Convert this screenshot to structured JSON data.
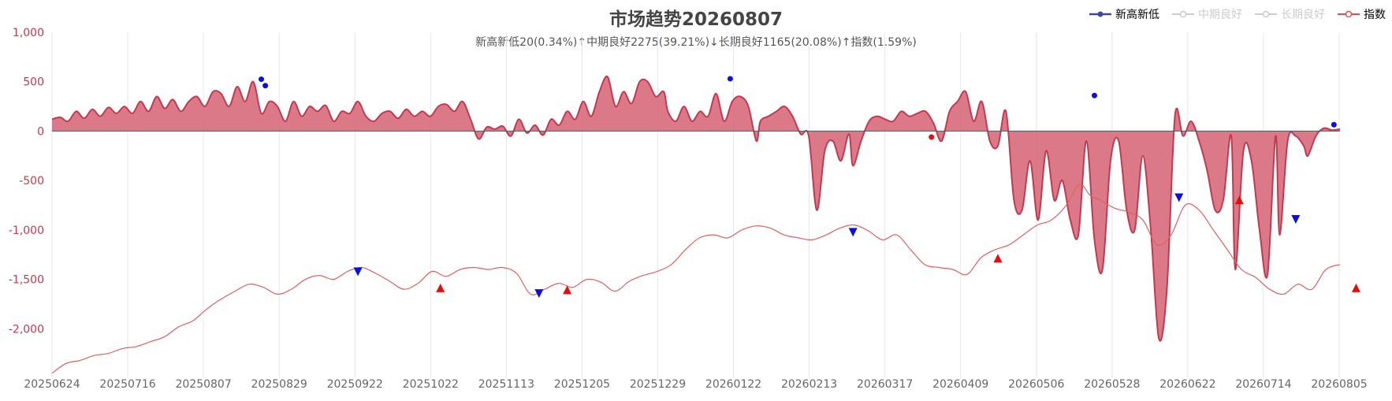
{
  "title": "市场趋势20260807",
  "subtitle": "新高新低20(0.34%)↑中期良好2275(39.21%)↓长期良好1165(20.08%)↑指数(1.59%)",
  "legend": [
    {
      "name": "新高新低",
      "active": true,
      "color": "#c23a4f"
    },
    {
      "name": "中期良好",
      "active": false,
      "color": "#cccccc"
    },
    {
      "name": "长期良好",
      "active": false,
      "color": "#cccccc"
    },
    {
      "name": "指数",
      "active": true,
      "color": "#e65a5a"
    }
  ],
  "chart_data": {
    "type": "area",
    "y_axis": {
      "min": -2500,
      "max": 1000,
      "ticks": [
        "1,000",
        "500",
        "0",
        "-500",
        "-1,000",
        "-1,500",
        "-2,000"
      ],
      "tick_values": [
        1000,
        500,
        0,
        -500,
        -1000,
        -1500,
        -2000
      ]
    },
    "x_ticks": [
      "20250624",
      "20250716",
      "20250807",
      "20250829",
      "20250922",
      "20251022",
      "20251113",
      "20251205",
      "20251229",
      "20260122",
      "20260213",
      "20260317",
      "20260409",
      "20260506",
      "20260528",
      "20260622",
      "20260714",
      "20260805"
    ],
    "x_count": 272,
    "grid": "vertical",
    "colors": {
      "area": "#c23a4f",
      "area_fill": "#d56274",
      "index_line": "#e06060",
      "marker_up": "#e01010",
      "marker_down": "#0a10e0",
      "axis_text": "#c23a4f",
      "grid": "#e4e6f0"
    },
    "series": [
      {
        "name": "新高新低",
        "knots": [
          [
            0,
            120
          ],
          [
            4,
            140
          ],
          [
            8,
            100
          ],
          [
            12,
            200
          ],
          [
            16,
            130
          ],
          [
            20,
            220
          ],
          [
            24,
            150
          ],
          [
            28,
            240
          ],
          [
            32,
            180
          ],
          [
            36,
            250
          ],
          [
            40,
            180
          ],
          [
            44,
            300
          ],
          [
            48,
            200
          ],
          [
            52,
            350
          ],
          [
            56,
            230
          ],
          [
            60,
            320
          ],
          [
            64,
            200
          ],
          [
            68,
            300
          ],
          [
            72,
            350
          ],
          [
            76,
            250
          ],
          [
            80,
            400
          ],
          [
            84,
            380
          ],
          [
            88,
            250
          ],
          [
            92,
            450
          ],
          [
            96,
            300
          ],
          [
            100,
            500
          ],
          [
            104,
            180
          ],
          [
            108,
            300
          ],
          [
            112,
            250
          ],
          [
            116,
            100
          ],
          [
            120,
            300
          ],
          [
            124,
            150
          ],
          [
            128,
            250
          ],
          [
            132,
            200
          ],
          [
            136,
            260
          ],
          [
            140,
            100
          ],
          [
            144,
            200
          ],
          [
            148,
            180
          ],
          [
            152,
            300
          ],
          [
            156,
            150
          ],
          [
            160,
            100
          ],
          [
            164,
            180
          ],
          [
            168,
            200
          ],
          [
            172,
            130
          ],
          [
            176,
            220
          ],
          [
            180,
            150
          ],
          [
            184,
            200
          ],
          [
            188,
            150
          ],
          [
            192,
            250
          ],
          [
            196,
            270
          ],
          [
            200,
            200
          ],
          [
            204,
            300
          ],
          [
            208,
            120
          ],
          [
            212,
            -80
          ],
          [
            216,
            40
          ],
          [
            220,
            20
          ],
          [
            224,
            50
          ],
          [
            228,
            -50
          ],
          [
            232,
            120
          ],
          [
            236,
            -20
          ],
          [
            240,
            60
          ],
          [
            244,
            -40
          ],
          [
            248,
            120
          ],
          [
            252,
            60
          ],
          [
            256,
            200
          ],
          [
            260,
            120
          ],
          [
            264,
            300
          ],
          [
            268,
            150
          ],
          [
            272,
            400
          ],
          [
            276,
            550
          ],
          [
            280,
            250
          ],
          [
            284,
            400
          ],
          [
            288,
            280
          ],
          [
            292,
            500
          ],
          [
            296,
            500
          ],
          [
            300,
            350
          ],
          [
            304,
            400
          ],
          [
            306,
            200
          ],
          [
            310,
            100
          ],
          [
            314,
            250
          ],
          [
            318,
            100
          ],
          [
            322,
            200
          ],
          [
            326,
            150
          ],
          [
            330,
            380
          ],
          [
            334,
            100
          ],
          [
            338,
            300
          ],
          [
            342,
            350
          ],
          [
            346,
            250
          ],
          [
            350,
            -100
          ],
          [
            352,
            100
          ],
          [
            356,
            150
          ],
          [
            360,
            200
          ],
          [
            364,
            250
          ],
          [
            368,
            150
          ],
          [
            372,
            -30
          ],
          [
            376,
            -50
          ],
          [
            380,
            -800
          ],
          [
            384,
            -200
          ],
          [
            388,
            -100
          ],
          [
            392,
            -300
          ],
          [
            396,
            -30
          ],
          [
            398,
            -350
          ],
          [
            402,
            -100
          ],
          [
            406,
            100
          ],
          [
            410,
            150
          ],
          [
            414,
            120
          ],
          [
            418,
            100
          ],
          [
            422,
            200
          ],
          [
            426,
            150
          ],
          [
            430,
            180
          ],
          [
            434,
            200
          ],
          [
            438,
            80
          ],
          [
            442,
            -100
          ],
          [
            446,
            200
          ],
          [
            450,
            300
          ],
          [
            454,
            400
          ],
          [
            458,
            100
          ],
          [
            462,
            300
          ],
          [
            466,
            -100
          ],
          [
            470,
            -150
          ],
          [
            474,
            200
          ],
          [
            478,
            -700
          ],
          [
            482,
            -800
          ],
          [
            486,
            -300
          ],
          [
            490,
            -900
          ],
          [
            494,
            -200
          ],
          [
            498,
            -700
          ],
          [
            502,
            -500
          ],
          [
            506,
            -900
          ],
          [
            510,
            -1050
          ],
          [
            514,
            -100
          ],
          [
            518,
            -1100
          ],
          [
            522,
            -1400
          ],
          [
            526,
            -300
          ],
          [
            530,
            -100
          ],
          [
            534,
            -800
          ],
          [
            538,
            -1000
          ],
          [
            542,
            -250
          ],
          [
            546,
            -1000
          ],
          [
            550,
            -2100
          ],
          [
            554,
            -1600
          ],
          [
            558,
            150
          ],
          [
            562,
            -50
          ],
          [
            566,
            100
          ],
          [
            570,
            -100
          ],
          [
            574,
            -400
          ],
          [
            578,
            -800
          ],
          [
            582,
            -700
          ],
          [
            586,
            -50
          ],
          [
            588,
            -1400
          ],
          [
            592,
            -200
          ],
          [
            596,
            -300
          ],
          [
            600,
            -1000
          ],
          [
            604,
            -1450
          ],
          [
            608,
            -50
          ],
          [
            610,
            -1050
          ],
          [
            614,
            -100
          ],
          [
            618,
            -50
          ],
          [
            622,
            -150
          ],
          [
            624,
            -250
          ],
          [
            628,
            -50
          ],
          [
            632,
            30
          ],
          [
            636,
            10
          ],
          [
            640,
            20
          ]
        ],
        "scale_x": 0.4375
      },
      {
        "name": "指数",
        "knots": [
          [
            0,
            -2450
          ],
          [
            8,
            -2350
          ],
          [
            16,
            -2320
          ],
          [
            24,
            -2270
          ],
          [
            32,
            -2250
          ],
          [
            40,
            -2200
          ],
          [
            48,
            -2180
          ],
          [
            56,
            -2130
          ],
          [
            64,
            -2080
          ],
          [
            72,
            -1980
          ],
          [
            80,
            -1920
          ],
          [
            88,
            -1800
          ],
          [
            96,
            -1700
          ],
          [
            104,
            -1620
          ],
          [
            112,
            -1550
          ],
          [
            120,
            -1580
          ],
          [
            128,
            -1650
          ],
          [
            136,
            -1600
          ],
          [
            144,
            -1500
          ],
          [
            152,
            -1460
          ],
          [
            160,
            -1500
          ],
          [
            168,
            -1420
          ],
          [
            176,
            -1380
          ],
          [
            184,
            -1440
          ],
          [
            192,
            -1520
          ],
          [
            200,
            -1600
          ],
          [
            208,
            -1540
          ],
          [
            216,
            -1420
          ],
          [
            224,
            -1470
          ],
          [
            232,
            -1400
          ],
          [
            240,
            -1380
          ],
          [
            248,
            -1400
          ],
          [
            256,
            -1380
          ],
          [
            264,
            -1440
          ],
          [
            272,
            -1650
          ],
          [
            280,
            -1600
          ],
          [
            288,
            -1540
          ],
          [
            296,
            -1580
          ],
          [
            304,
            -1500
          ],
          [
            312,
            -1530
          ],
          [
            320,
            -1620
          ],
          [
            328,
            -1520
          ],
          [
            336,
            -1460
          ],
          [
            344,
            -1420
          ],
          [
            352,
            -1350
          ],
          [
            360,
            -1200
          ],
          [
            368,
            -1080
          ],
          [
            376,
            -1050
          ],
          [
            384,
            -1080
          ],
          [
            392,
            -1000
          ],
          [
            400,
            -960
          ],
          [
            408,
            -980
          ],
          [
            416,
            -1050
          ],
          [
            424,
            -1080
          ],
          [
            432,
            -1100
          ],
          [
            440,
            -1050
          ],
          [
            448,
            -980
          ],
          [
            456,
            -950
          ],
          [
            464,
            -1010
          ],
          [
            472,
            -1100
          ],
          [
            480,
            -1050
          ],
          [
            488,
            -1200
          ],
          [
            496,
            -1350
          ],
          [
            504,
            -1380
          ],
          [
            512,
            -1400
          ],
          [
            520,
            -1450
          ],
          [
            528,
            -1280
          ],
          [
            536,
            -1200
          ],
          [
            544,
            -1150
          ],
          [
            552,
            -1050
          ],
          [
            560,
            -950
          ],
          [
            568,
            -900
          ],
          [
            576,
            -760
          ],
          [
            584,
            -540
          ],
          [
            590,
            -650
          ],
          [
            596,
            -700
          ],
          [
            604,
            -780
          ],
          [
            612,
            -820
          ],
          [
            620,
            -900
          ],
          [
            628,
            -1150
          ],
          [
            636,
            -1050
          ],
          [
            644,
            -750
          ],
          [
            652,
            -800
          ],
          [
            660,
            -1000
          ],
          [
            668,
            -1200
          ],
          [
            676,
            -1400
          ],
          [
            684,
            -1480
          ],
          [
            692,
            -1600
          ],
          [
            700,
            -1650
          ],
          [
            708,
            -1550
          ],
          [
            716,
            -1600
          ],
          [
            724,
            -1400
          ],
          [
            732,
            -1350
          ]
        ],
        "scale_x": 0.3716
      }
    ],
    "markers": [
      {
        "series": "新高新低",
        "i": 104,
        "y": 525,
        "shape": "dot",
        "color": "#0a10e0"
      },
      {
        "series": "新高新低",
        "i": 106,
        "y": 460,
        "shape": "dot",
        "color": "#0a10e0"
      },
      {
        "series": "新高新低",
        "i": 337,
        "y": 530,
        "shape": "dot",
        "color": "#0a10e0"
      },
      {
        "series": "新高新低",
        "i": 437,
        "y": -60,
        "shape": "dot",
        "color": "#e01010"
      },
      {
        "series": "新高新低",
        "i": 518,
        "y": 360,
        "shape": "dot",
        "color": "#0a10e0"
      },
      {
        "series": "新高新低",
        "i": 637,
        "y": 65,
        "shape": "dot",
        "color": "#0a10e0"
      },
      {
        "series": "指数",
        "i": 152,
        "y": -1420,
        "shape": "tri-down",
        "color": "#0a10e0"
      },
      {
        "series": "指数",
        "i": 193,
        "y": -1590,
        "shape": "tri-up",
        "color": "#e01010"
      },
      {
        "series": "指数",
        "i": 242,
        "y": -1640,
        "shape": "tri-down",
        "color": "#0a10e0"
      },
      {
        "series": "指数",
        "i": 256,
        "y": -1610,
        "shape": "tri-up",
        "color": "#e01010"
      },
      {
        "series": "指数",
        "i": 398,
        "y": -1020,
        "shape": "tri-down",
        "color": "#0a10e0"
      },
      {
        "series": "指数",
        "i": 470,
        "y": -1290,
        "shape": "tri-up",
        "color": "#e01010"
      },
      {
        "series": "指数",
        "i": 560,
        "y": -670,
        "shape": "tri-down",
        "color": "#0a10e0"
      },
      {
        "series": "指数",
        "i": 590,
        "y": -700,
        "shape": "tri-up",
        "color": "#e01010"
      },
      {
        "series": "指数",
        "i": 618,
        "y": -890,
        "shape": "tri-down",
        "color": "#0a10e0"
      },
      {
        "series": "指数",
        "i": 648,
        "y": -1590,
        "shape": "tri-up",
        "color": "#e01010"
      }
    ]
  }
}
